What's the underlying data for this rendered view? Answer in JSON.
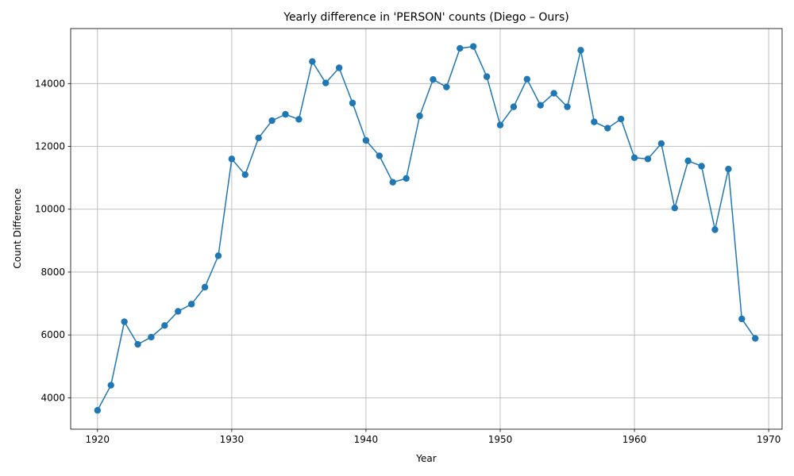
{
  "chart_data": {
    "type": "line",
    "title": "Yearly difference in 'PERSON' counts (Diego – Ours)",
    "xlabel": "Year",
    "ylabel": "Count Difference",
    "xlim": [
      1918,
      1971
    ],
    "ylim": [
      3000,
      15750
    ],
    "xticks": [
      1920,
      1930,
      1940,
      1950,
      1960,
      1970
    ],
    "yticks": [
      4000,
      6000,
      8000,
      10000,
      12000,
      14000
    ],
    "grid": true,
    "color": "#1f77b4",
    "marker": "circle",
    "series": [
      {
        "x": [
          1920,
          1921,
          1922,
          1923,
          1924,
          1925,
          1926,
          1927,
          1928,
          1929,
          1930,
          1931,
          1932,
          1933,
          1934,
          1935,
          1936,
          1937,
          1938,
          1939,
          1940,
          1941,
          1942,
          1943,
          1944,
          1945,
          1946,
          1947,
          1948,
          1949,
          1950,
          1951,
          1952,
          1953,
          1954,
          1955,
          1956,
          1957,
          1958,
          1959,
          1960,
          1961,
          1962,
          1963,
          1964,
          1965,
          1966,
          1967,
          1968,
          1969
        ],
        "values": [
          3600,
          4400,
          6420,
          5700,
          5930,
          6300,
          6750,
          6980,
          7520,
          8520,
          11600,
          11100,
          12270,
          12820,
          13020,
          12860,
          14700,
          14020,
          14500,
          13380,
          12190,
          11700,
          10860,
          10980,
          12970,
          14130,
          13890,
          15120,
          15180,
          14220,
          12680,
          13260,
          14140,
          13310,
          13690,
          13260,
          15060,
          12780,
          12580,
          12870,
          11640,
          11600,
          12090,
          10040,
          11540,
          11370,
          9350,
          11280,
          6510,
          5890
        ]
      }
    ]
  }
}
